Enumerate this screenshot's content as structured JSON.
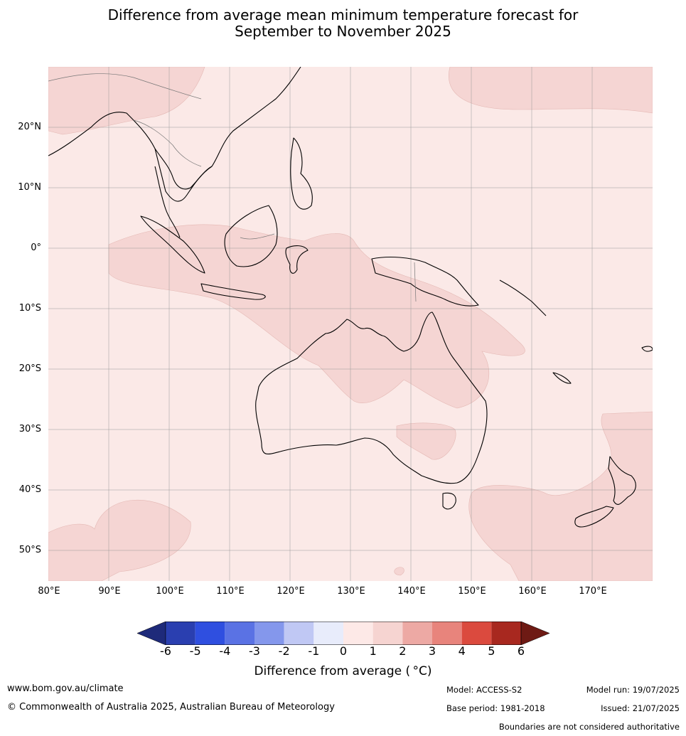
{
  "title": {
    "line1": "Difference from average mean minimum temperature forecast for",
    "line2": "September to November 2025"
  },
  "map": {
    "lat_labels": [
      "20°N",
      "10°N",
      "0°",
      "10°S",
      "20°S",
      "30°S",
      "40°S",
      "50°S"
    ],
    "lon_labels": [
      "80°E",
      "90°E",
      "100°E",
      "110°E",
      "120°E",
      "130°E",
      "140°E",
      "150°E",
      "160°E",
      "170°E"
    ],
    "base_color": "#fbe9e7",
    "anomaly_color": "#f5d5d3",
    "coast_color": "#000000",
    "border_color": "#777777"
  },
  "colorbar": {
    "ticks": [
      "-6",
      "-5",
      "-4",
      "-3",
      "-2",
      "-1",
      "0",
      "1",
      "2",
      "3",
      "4",
      "5",
      "6"
    ],
    "colors": [
      "#1e2a7a",
      "#2a3fb0",
      "#2f4fe0",
      "#5a72e4",
      "#8497ec",
      "#c0c8f4",
      "#e8ecfb",
      "#fde9e7",
      "#f6d4d1",
      "#eda9a4",
      "#e8847c",
      "#db4a3e",
      "#a8281f",
      "#6e1a14"
    ],
    "label": "Difference from average ( °C)"
  },
  "footer": {
    "website": "www.bom.gov.au/climate",
    "copyright": "© Commonwealth of Australia 2025, Australian Bureau of Meteorology",
    "model": "Model: ACCESS-S2",
    "base_period": "Base period: 1981-2018",
    "model_run": "Model run: 19/07/2025",
    "issued": "Issued: 21/07/2025",
    "disclaimer": "Boundaries are not considered authoritative"
  }
}
